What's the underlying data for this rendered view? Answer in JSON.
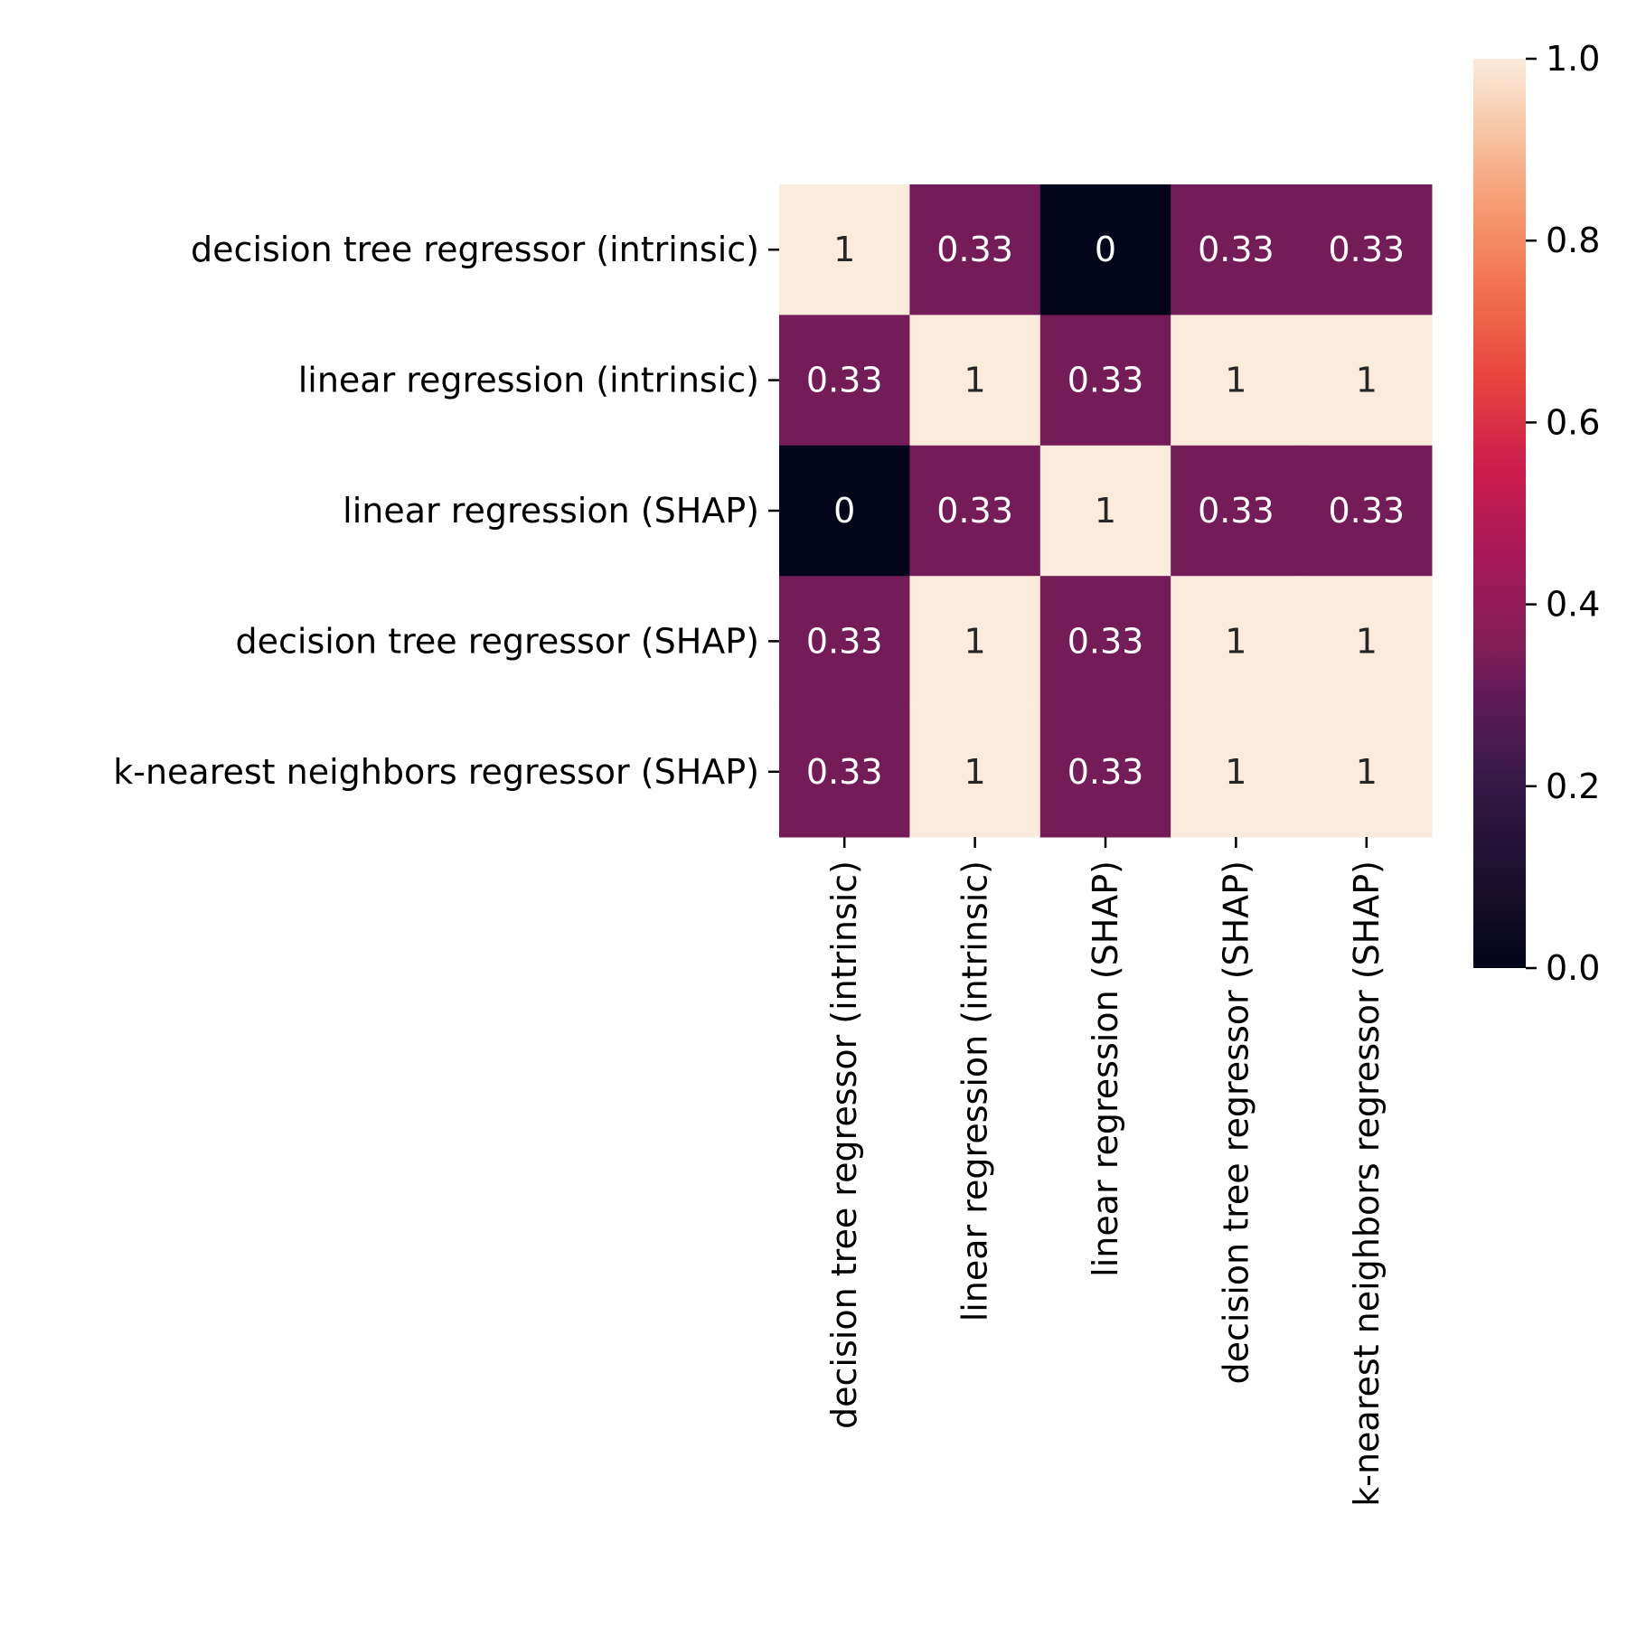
{
  "chart_data": {
    "type": "heatmap",
    "row_labels": [
      "decision tree regressor (intrinsic)",
      "linear regression (intrinsic)",
      "linear regression (SHAP)",
      "decision tree regressor (SHAP)",
      "k-nearest neighbors regressor (SHAP)"
    ],
    "col_labels": [
      "decision tree regressor (intrinsic)",
      "linear regression (intrinsic)",
      "linear regression (SHAP)",
      "decision tree regressor (SHAP)",
      "k-nearest neighbors regressor (SHAP)"
    ],
    "values": [
      [
        1,
        0.33,
        0,
        0.33,
        0.33
      ],
      [
        0.33,
        1,
        0.33,
        1,
        1
      ],
      [
        0,
        0.33,
        1,
        0.33,
        0.33
      ],
      [
        0.33,
        1,
        0.33,
        1,
        1
      ],
      [
        0.33,
        1,
        0.33,
        1,
        1
      ]
    ],
    "annotations": [
      [
        "1",
        "0.33",
        "0",
        "0.33",
        "0.33"
      ],
      [
        "0.33",
        "1",
        "0.33",
        "1",
        "1"
      ],
      [
        "0",
        "0.33",
        "1",
        "0.33",
        "0.33"
      ],
      [
        "0.33",
        "1",
        "0.33",
        "1",
        "1"
      ],
      [
        "0.33",
        "1",
        "0.33",
        "1",
        "1"
      ]
    ],
    "colorbar": {
      "range": [
        0.0,
        1.0
      ],
      "ticks": [
        "0.0",
        "0.2",
        "0.4",
        "0.6",
        "0.8",
        "1.0"
      ],
      "colormap": "rocket"
    },
    "colors": {
      "low": "#03051a",
      "mid": "#841e5a",
      "high": "#faebdd"
    }
  }
}
